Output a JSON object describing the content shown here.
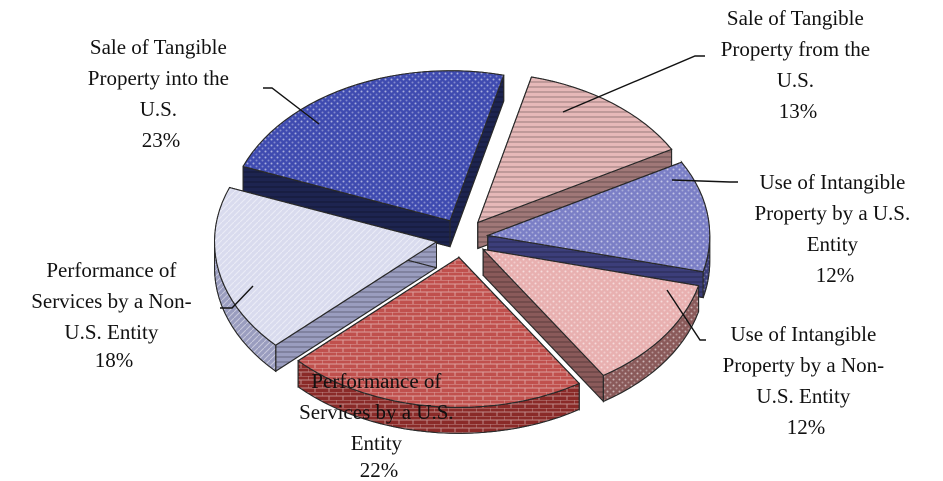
{
  "chart_data": {
    "type": "pie",
    "title": "",
    "slices": [
      {
        "lines": [
          "Sale of Tangible",
          "Property from the",
          "U.S.",
          "13%"
        ],
        "value": 13,
        "color": "#e6b8b8",
        "side_color": "#a07878"
      },
      {
        "lines": [
          "Use of Intangible",
          "Property by a U.S.",
          "Entity",
          "12%"
        ],
        "value": 12,
        "color": "#7b7fc6",
        "side_color": "#3c3e7a"
      },
      {
        "lines": [
          "Use of Intangible",
          "Property by a Non-",
          "U.S. Entity",
          "12%"
        ],
        "value": 12,
        "color": "#e8b0b0",
        "side_color": "#8a5a5a"
      },
      {
        "lines": [
          "Performance of",
          "Services by a U.S.",
          "Entity",
          "22%"
        ],
        "value": 22,
        "color": "#c0504d",
        "side_color": "#8a2a28"
      },
      {
        "lines": [
          "Performance of",
          "Services by a Non-",
          "U.S. Entity",
          "18%"
        ],
        "value": 18,
        "color": "#d9dbee",
        "side_color": "#9a9dbf"
      },
      {
        "lines": [
          "Sale of Tangible",
          "Property into the",
          "U.S.",
          "23%"
        ],
        "value": 23,
        "color": "#3f4bb0",
        "side_color": "#1d2450"
      }
    ]
  }
}
